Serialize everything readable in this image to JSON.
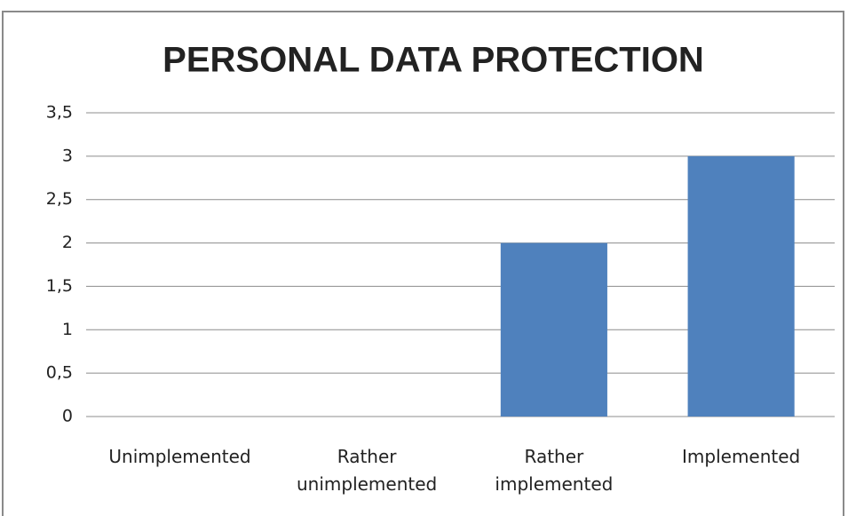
{
  "chart_data": {
    "type": "bar",
    "title": "PERSONAL DATA PROTECTION",
    "categories": [
      "Unimplemented",
      "Rather unimplemented",
      "Rather implemented",
      "Implemented"
    ],
    "values": [
      0,
      0,
      2,
      3
    ],
    "color": "#4f81bd",
    "ylim": [
      0,
      3.5
    ],
    "yticks": [
      0,
      {
        "value": 0.5,
        "label": "0,5"
      },
      1,
      {
        "value": 1.5,
        "label": "1,5"
      },
      2,
      {
        "value": 2.5,
        "label": "2,5"
      },
      3,
      {
        "value": 3.5,
        "label": "3,5"
      }
    ],
    "grid": true
  }
}
